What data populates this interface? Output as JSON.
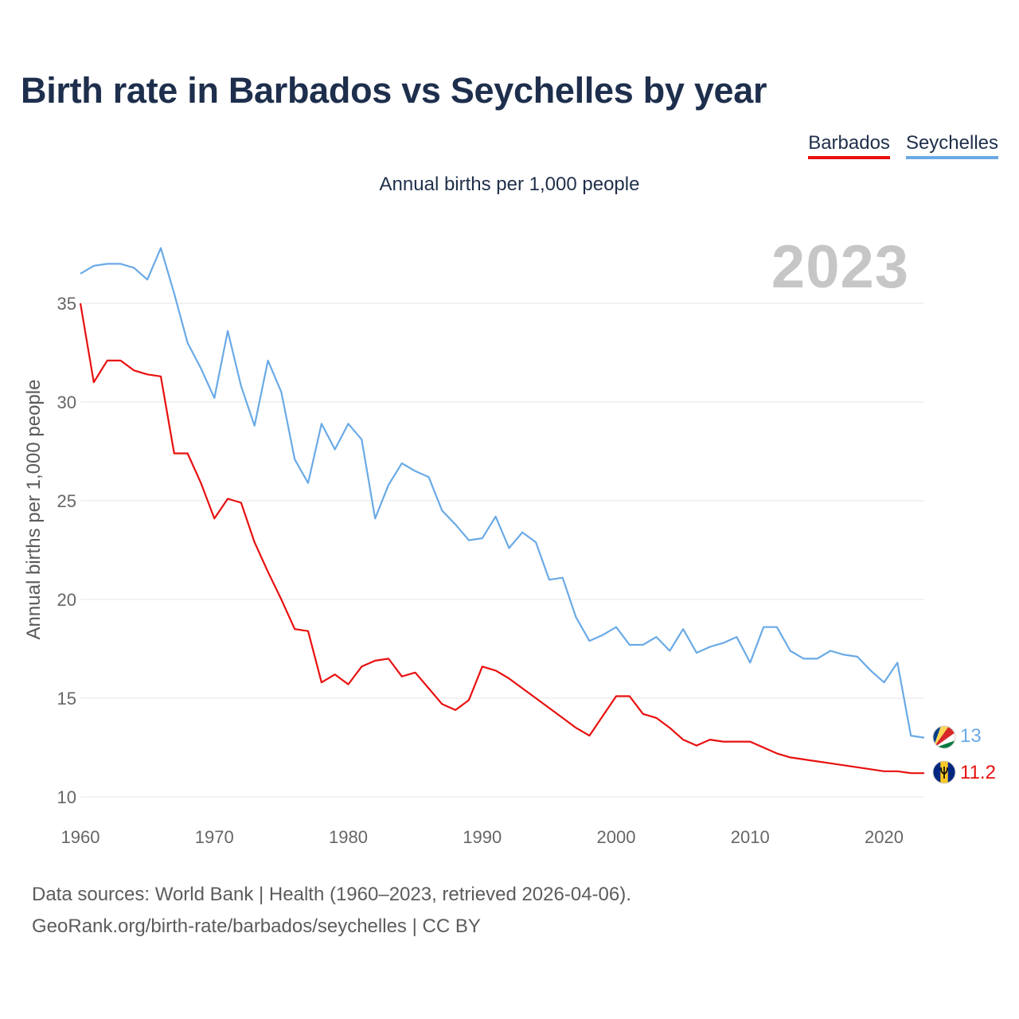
{
  "title": "Birth rate in Barbados vs Seychelles by year",
  "subtitle": "Annual births per 1,000 people",
  "year_overlay": "2023",
  "legend": {
    "barbados": "Barbados",
    "seychelles": "Seychelles"
  },
  "colors": {
    "barbados": "#e8100f",
    "seychelles": "#6aaae6",
    "grid": "#e6e6e6",
    "tick": "#666666"
  },
  "footer": {
    "line1": "Data sources: World Bank | Health (1960–2023, retrieved 2026-04-06).",
    "line2": "GeoRank.org/birth-rate/barbados/seychelles | CC BY"
  },
  "end_labels": {
    "seychelles": "13",
    "barbados": "11.2"
  },
  "chart_data": {
    "type": "line",
    "title": "Birth rate in Barbados vs Seychelles by year",
    "xlabel": "",
    "ylabel": "Annual births per 1,000 people",
    "xlim": [
      1960,
      2023
    ],
    "ylim": [
      10,
      37.5
    ],
    "xticks": [
      1960,
      1970,
      1980,
      1990,
      2000,
      2010,
      2020
    ],
    "yticks": [
      10,
      15,
      20,
      25,
      30,
      35
    ],
    "x": [
      1960,
      1961,
      1962,
      1963,
      1964,
      1965,
      1966,
      1967,
      1968,
      1969,
      1970,
      1971,
      1972,
      1973,
      1974,
      1975,
      1976,
      1977,
      1978,
      1979,
      1980,
      1981,
      1982,
      1983,
      1984,
      1985,
      1986,
      1987,
      1988,
      1989,
      1990,
      1991,
      1992,
      1993,
      1994,
      1995,
      1996,
      1997,
      1998,
      1999,
      2000,
      2001,
      2002,
      2003,
      2004,
      2005,
      2006,
      2007,
      2008,
      2009,
      2010,
      2011,
      2012,
      2013,
      2014,
      2015,
      2016,
      2017,
      2018,
      2019,
      2020,
      2021,
      2022,
      2023
    ],
    "series": [
      {
        "name": "Barbados",
        "color": "#e8100f",
        "values": [
          35.0,
          31.0,
          32.1,
          32.1,
          31.6,
          31.4,
          31.3,
          27.4,
          27.4,
          25.9,
          24.1,
          25.1,
          24.9,
          22.9,
          21.4,
          20.0,
          18.5,
          18.4,
          15.8,
          16.2,
          15.7,
          16.6,
          16.9,
          17.0,
          16.1,
          16.3,
          15.5,
          14.7,
          14.4,
          14.9,
          16.6,
          16.4,
          16.0,
          15.5,
          15.0,
          14.5,
          14.0,
          13.5,
          13.1,
          14.1,
          15.1,
          15.1,
          14.2,
          14.0,
          13.5,
          12.9,
          12.6,
          12.9,
          12.8,
          12.8,
          12.8,
          12.5,
          12.2,
          12.0,
          11.9,
          11.8,
          11.7,
          11.6,
          11.5,
          11.4,
          11.3,
          11.3,
          11.2,
          11.2
        ]
      },
      {
        "name": "Seychelles",
        "color": "#6aaae6",
        "values": [
          36.5,
          36.9,
          37.0,
          37.0,
          36.8,
          36.2,
          37.8,
          35.5,
          33.0,
          31.7,
          30.2,
          33.6,
          30.8,
          28.8,
          32.1,
          30.5,
          27.1,
          25.9,
          28.9,
          27.6,
          28.9,
          28.1,
          24.1,
          25.8,
          26.9,
          26.5,
          26.2,
          24.5,
          23.8,
          23.0,
          23.1,
          24.2,
          22.6,
          23.4,
          22.9,
          21.0,
          21.1,
          19.1,
          17.9,
          18.2,
          18.6,
          17.7,
          17.7,
          18.1,
          17.4,
          18.5,
          17.3,
          17.6,
          17.8,
          18.1,
          16.8,
          18.6,
          18.6,
          17.4,
          17.0,
          17.0,
          17.4,
          17.2,
          17.1,
          16.4,
          15.8,
          16.8,
          13.1,
          13.0
        ]
      }
    ]
  }
}
